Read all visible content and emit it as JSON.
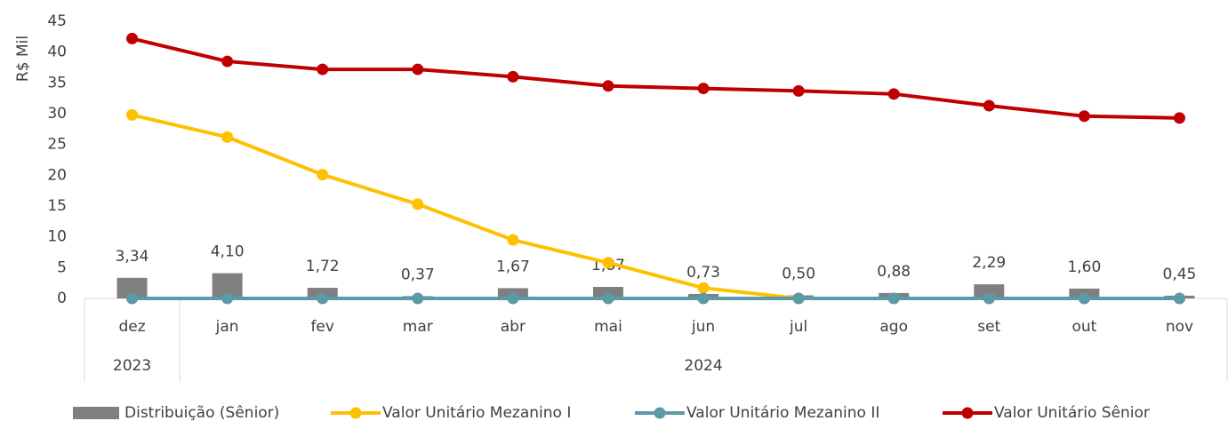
{
  "chart_data": {
    "type": "bar",
    "y_axis_label": "R$ Mil",
    "categories": [
      "dez",
      "jan",
      "fev",
      "mar",
      "abr",
      "mai",
      "jun",
      "jul",
      "ago",
      "set",
      "out",
      "nov"
    ],
    "x_groups": [
      {
        "label": "2023",
        "count": 1
      },
      {
        "label": "2024",
        "count": 11
      }
    ],
    "ylim": [
      0,
      45
    ],
    "yticks": [
      0,
      5,
      10,
      15,
      20,
      25,
      30,
      35,
      40,
      45
    ],
    "series": [
      {
        "name": "Distribuição (Sênior)",
        "type": "bar",
        "color": "#7f7f7f",
        "values": [
          3.34,
          4.1,
          1.72,
          0.37,
          1.67,
          1.87,
          0.73,
          0.5,
          0.88,
          2.29,
          1.6,
          0.45
        ],
        "value_labels": [
          "3,34",
          "4,10",
          "1,72",
          "0,37",
          "1,67",
          "1,87",
          "0,73",
          "0,50",
          "0,88",
          "2,29",
          "1,60",
          "0,45"
        ]
      },
      {
        "name": "Valor Unitário Mezanino I",
        "type": "line",
        "color": "#ffc000",
        "values": [
          29.8,
          26.2,
          20.1,
          15.3,
          9.5,
          5.8,
          1.7,
          0,
          0,
          0,
          0,
          0
        ]
      },
      {
        "name": "Valor Unitário Mezanino II",
        "type": "line",
        "color": "#5b9aa6",
        "values": [
          0,
          0,
          0,
          0,
          0,
          0,
          0,
          0,
          0,
          0,
          0,
          0
        ]
      },
      {
        "name": "Valor Unitário Sênior",
        "type": "line",
        "color": "#c00000",
        "values": [
          42.2,
          38.5,
          37.2,
          37.2,
          36.0,
          34.5,
          34.1,
          33.7,
          33.2,
          31.3,
          29.6,
          29.3
        ]
      }
    ]
  }
}
